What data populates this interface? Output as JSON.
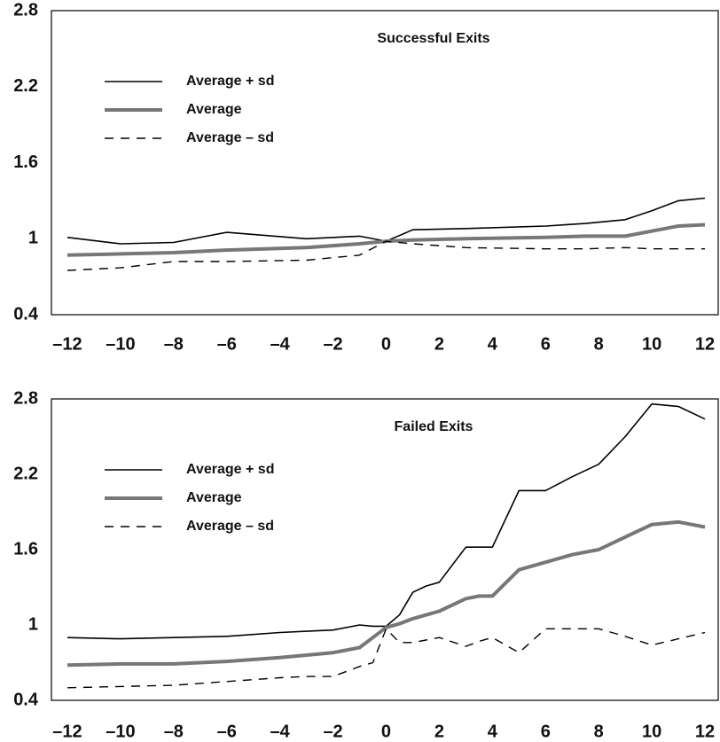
{
  "chart_data": [
    {
      "type": "line",
      "title": "Successful Exits",
      "legend": "upper left",
      "x": [
        -12,
        -10,
        -8,
        -6,
        -3,
        -1,
        0,
        1,
        3,
        6,
        7.5,
        9,
        10,
        11,
        12
      ],
      "series": [
        {
          "name": "Average + sd",
          "color": "#000000",
          "linestyle": "solid",
          "linewidth": 1.6,
          "values": [
            1.01,
            0.96,
            0.97,
            1.05,
            1.0,
            1.02,
            0.98,
            1.07,
            1.08,
            1.1,
            1.12,
            1.15,
            1.22,
            1.3,
            1.32
          ]
        },
        {
          "name": "Average",
          "color": "#777777",
          "linestyle": "solid",
          "linewidth": 4,
          "values": [
            0.87,
            0.88,
            0.89,
            0.91,
            0.93,
            0.96,
            0.98,
            0.99,
            1.0,
            1.01,
            1.02,
            1.02,
            1.06,
            1.1,
            1.11
          ]
        },
        {
          "name": "Average – sd",
          "color": "#000000",
          "linestyle": "dashed",
          "linewidth": 1.4,
          "values": [
            0.75,
            0.77,
            0.82,
            0.82,
            0.83,
            0.87,
            0.98,
            0.96,
            0.93,
            0.92,
            0.92,
            0.93,
            0.92,
            0.92,
            0.92
          ]
        }
      ],
      "xlim": [
        -12.6,
        12.5
      ],
      "xticks": [
        {
          "value": -12,
          "label": "–12"
        },
        {
          "value": -10,
          "label": "–10"
        },
        {
          "value": -8,
          "label": "–8"
        },
        {
          "value": -6,
          "label": "–6"
        },
        {
          "value": -4,
          "label": "–4"
        },
        {
          "value": -2,
          "label": "–2"
        },
        0,
        2,
        4,
        6,
        8,
        10,
        12
      ],
      "ylim": [
        0.4,
        2.8
      ],
      "yticks": [
        0.4,
        1,
        1.6,
        2.2,
        2.8
      ],
      "grid": false
    },
    {
      "type": "line",
      "title": "Failed Exits",
      "legend": "upper left",
      "x": [
        -12,
        -10,
        -8,
        -6,
        -4,
        -3,
        -2,
        -1,
        -0.5,
        0,
        0.5,
        1,
        1.5,
        2,
        3,
        3.5,
        4,
        5,
        6,
        7,
        8,
        9,
        10,
        11,
        12
      ],
      "series": [
        {
          "name": "Average + sd",
          "color": "#000000",
          "linestyle": "solid",
          "linewidth": 1.6,
          "values": [
            0.9,
            0.89,
            0.9,
            0.91,
            0.94,
            0.95,
            0.96,
            1.0,
            0.99,
            0.99,
            1.08,
            1.26,
            1.31,
            1.34,
            1.62,
            1.62,
            1.62,
            2.07,
            2.07,
            2.18,
            2.28,
            2.5,
            2.76,
            2.74,
            2.64
          ]
        },
        {
          "name": "Average",
          "color": "#777777",
          "linestyle": "solid",
          "linewidth": 4,
          "values": [
            0.68,
            0.69,
            0.69,
            0.71,
            0.74,
            0.76,
            0.78,
            0.82,
            0.9,
            0.98,
            1.01,
            1.05,
            1.08,
            1.11,
            1.21,
            1.23,
            1.23,
            1.44,
            1.5,
            1.56,
            1.6,
            1.7,
            1.8,
            1.82,
            1.78
          ]
        },
        {
          "name": "Average – sd",
          "color": "#000000",
          "linestyle": "dashed",
          "linewidth": 1.4,
          "values": [
            0.5,
            0.51,
            0.52,
            0.55,
            0.58,
            0.59,
            0.59,
            0.67,
            0.7,
            0.97,
            0.86,
            0.86,
            0.88,
            0.9,
            0.83,
            0.87,
            0.9,
            0.78,
            0.97,
            0.97,
            0.97,
            0.91,
            0.84,
            0.89,
            0.94
          ]
        }
      ],
      "xlim": [
        -12.6,
        12.5
      ],
      "xticks": [
        {
          "value": -12,
          "label": "–12"
        },
        {
          "value": -10,
          "label": "–10"
        },
        {
          "value": -8,
          "label": "–8"
        },
        {
          "value": -6,
          "label": "–6"
        },
        {
          "value": -4,
          "label": "–4"
        },
        {
          "value": -2,
          "label": "–2"
        },
        0,
        2,
        4,
        6,
        8,
        10,
        12
      ],
      "ylim": [
        0.4,
        2.8
      ],
      "yticks": [
        0.4,
        1,
        1.6,
        2.2,
        2.8
      ],
      "grid": false
    }
  ]
}
